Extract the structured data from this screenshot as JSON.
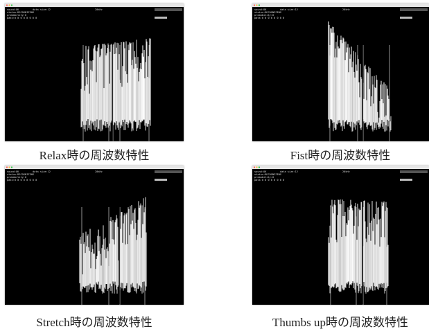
{
  "panels": [
    {
      "caption": "Relax時の周波数特性",
      "info": {
        "sound": "sound:OK",
        "size": "data size:12",
        "freq": "20kHz",
        "status": "status:RECOGNIZING",
        "probability": "probability:0",
        "pass": "pass:0 0 0 0 0 0 0 0"
      }
    },
    {
      "caption": "Fist時の周波数特性",
      "info": {
        "sound": "sound:OK",
        "size": "data size:12",
        "freq": "20kHz",
        "status": "status:RECOGNIZING",
        "probability": "probability:0",
        "pass": "pass:0 0 0 0 0 0 0 0"
      }
    },
    {
      "caption": "Stretch時の周波数特性",
      "info": {
        "sound": "sound:OK",
        "size": "data size:12",
        "freq": "20kHz",
        "status": "status:RECOGNIZING",
        "probability": "probability:0",
        "pass": "pass:0 0 0 0 0 0 0 0"
      }
    },
    {
      "caption": "Thumbs up時の周波数特性",
      "info": {
        "sound": "sound:OK",
        "size": "data size:12",
        "freq": "20kHz",
        "status": "status:RECOGNIZING",
        "probability": "probability:0",
        "pass": "pass:0 0 0 0 0 0 0 0"
      }
    }
  ]
}
